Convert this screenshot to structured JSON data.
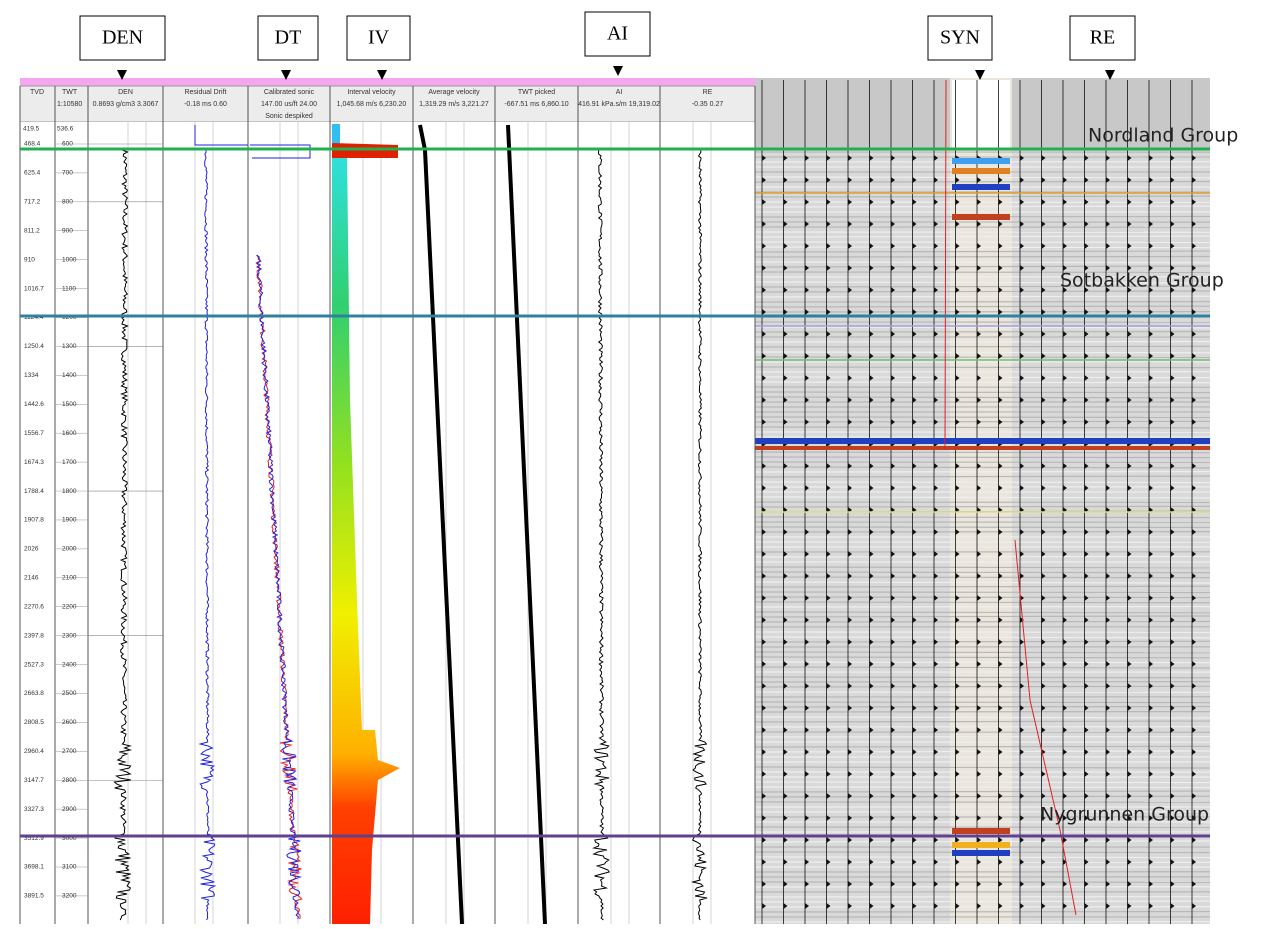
{
  "callouts": [
    "DEN",
    "DT",
    "IV",
    "AI",
    "SYN",
    "RE"
  ],
  "header": {
    "tvd": "TVD",
    "twt": "TWT",
    "scale": "1:10580",
    "tvd_top": "419.5",
    "twt_top": "536.6",
    "tracks": [
      {
        "name": "DEN",
        "range": "0.8693 g/cm3 3.3067"
      },
      {
        "name": "Residual Drift",
        "range": "-0.18 ms 0.60"
      },
      {
        "name": "Calibrated sonic",
        "range": "147.00 us/ft 24.00",
        "sub": "Sonic despiked"
      },
      {
        "name": "Interval velocity",
        "range": "1,045.68 m/s 6,230.20"
      },
      {
        "name": "Average velocity",
        "range": "1,319.29 m/s 3,221.27"
      },
      {
        "name": "TWT picked",
        "range": "-667.51 ms 6,860.10"
      },
      {
        "name": "AI",
        "range": "416.91 kPa.s/m 19,319.02"
      },
      {
        "name": "RE",
        "range": "-0.35 0.27"
      }
    ]
  },
  "depth": {
    "twt": [
      "600",
      "700",
      "800",
      "900",
      "1000",
      "1100",
      "1200",
      "1300",
      "1400",
      "1500",
      "1600",
      "1700",
      "1800",
      "1900",
      "2000",
      "2100",
      "2200",
      "2300",
      "2400",
      "2500",
      "2600",
      "2700",
      "2800",
      "2900",
      "3000",
      "3100",
      "3200"
    ],
    "tvd": [
      "468.4",
      "625.4",
      "717.2",
      "811.2",
      "910",
      "1016.7",
      "1124.4",
      "1250.4",
      "1334",
      "1442.6",
      "1556.7",
      "1674.3",
      "1788.4",
      "1907.8",
      "2026",
      "2146",
      "2270.6",
      "2397.8",
      "2527.3",
      "2663.8",
      "2808.5",
      "2960.4",
      "3147.7",
      "3327.3",
      "3512.9",
      "3698.1",
      "3891.5"
    ]
  },
  "groups": [
    "Nordland Group",
    "Sotbakken Group",
    "Nygrunnen  Group"
  ]
}
